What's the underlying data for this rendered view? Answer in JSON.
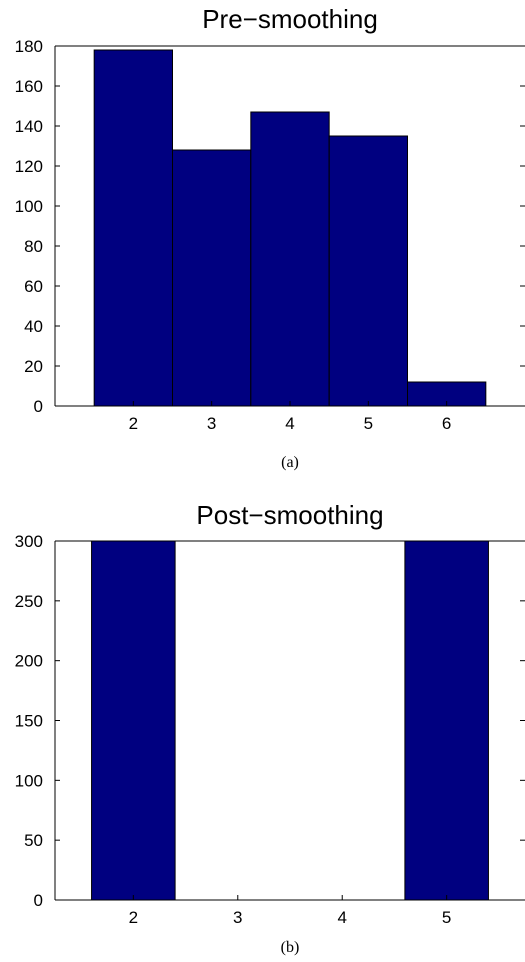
{
  "colors": {
    "bar": "#000080",
    "background": "#ffffff",
    "axis": "#000000"
  },
  "chart_data": [
    {
      "type": "bar",
      "title": "Pre−smoothing",
      "caption": "(a)",
      "xlabel": "",
      "ylabel": "",
      "categories": [
        2,
        3,
        4,
        5,
        6
      ],
      "values": [
        178,
        128,
        147,
        135,
        12
      ],
      "xlim": [
        1,
        7
      ],
      "ylim": [
        0,
        180
      ],
      "yticks": [
        0,
        20,
        40,
        60,
        80,
        100,
        120,
        140,
        160,
        180
      ],
      "xticks": [
        2,
        3,
        4,
        5,
        6
      ],
      "bar_width": 1.0,
      "grid": false,
      "legend": "none"
    },
    {
      "type": "bar",
      "title": "Post−smoothing",
      "caption": "(b)",
      "xlabel": "",
      "ylabel": "",
      "categories": [
        2,
        3,
        4,
        5
      ],
      "values": [
        300,
        0,
        0,
        300
      ],
      "xlim": [
        1.25,
        5.75
      ],
      "ylim": [
        0,
        300
      ],
      "yticks": [
        0,
        50,
        100,
        150,
        200,
        250,
        300
      ],
      "xticks": [
        2,
        3,
        4,
        5
      ],
      "bar_width": 0.8,
      "grid": false,
      "legend": "none"
    }
  ]
}
